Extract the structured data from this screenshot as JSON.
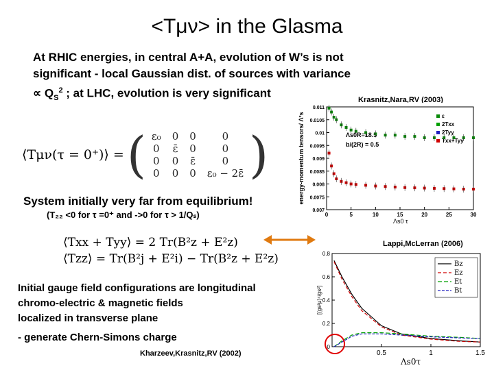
{
  "slide": {
    "title": "<Tμν> in the Glasma",
    "intro_line1": "At RHIC energies, in central A+A, evolution of W’s is not",
    "intro_line2": "significant - local Gaussian dist. of sources with variance",
    "intro_line3_prefix": "∝ Q",
    "intro_line3_sub": "S",
    "intro_line3_sup": "2",
    "intro_line3_suffix": "  ; at LHC, evolution is very significant",
    "cite_top": "Krasnitz,Nara,RV (2003)",
    "system_line": "System initially very far from equilibrium!",
    "tzz_line": "(T₂₂ <0 for τ =0⁺ and ->0 for τ > 1/Qₛ)",
    "cite_mid": "Lappi,McLerran (2006)",
    "initial_line1": "Initial gauge field configurations are longitudinal",
    "initial_line2": "chromo-electric & magnetic fields",
    "initial_line3": "localized in transverse plane",
    "dash_line": "- generate Chern-Simons charge",
    "cite_bottom": "Kharzeev,Krasnitz,RV (2002)"
  },
  "equations": {
    "tmunu_lhs": "⟨Tμν(τ = 0⁺)⟩ =",
    "matrix": [
      [
        "ε₀",
        "0",
        "0",
        "0"
      ],
      [
        "0",
        "ε̄",
        "0",
        "0"
      ],
      [
        "0",
        "0",
        "ε̄",
        "0"
      ],
      [
        "0",
        "0",
        "0",
        "ε₀ − 2ε̄"
      ]
    ],
    "eq1": "⟨Txx + Tyy⟩ = 2 Tr(B²z + E²z)",
    "eq2": "⟨Tzz⟩ = Tr(B²j + E²i) − Tr(B²z + E²z)"
  },
  "chart_data": [
    {
      "type": "scatter",
      "ylabel": "energy-momentum tensors/ Λ³s",
      "xlabel": "Λs0 τ",
      "annotations": [
        "Λs0R=18.5",
        "b/(2R) = 0.5"
      ],
      "legend": [
        "ε",
        "2Txx",
        "2Tyy",
        "Txx+Tyy"
      ],
      "legend_colors": [
        "#0a8a0a",
        "#00a000",
        "#2020c0",
        "#d00000"
      ],
      "xlim": [
        0,
        30
      ],
      "ylim": [
        0.007,
        0.011
      ],
      "xticks": [
        "0",
        "5",
        "10",
        "15",
        "20",
        "25",
        "30"
      ],
      "yticks": [
        "0.007",
        "0.0075",
        "0.008",
        "0.0085",
        "0.009",
        "0.0095",
        "0.01",
        "0.0105",
        "0.011"
      ],
      "series": [
        {
          "name": "ε",
          "color": "#0a8a0a",
          "x": [
            0.5,
            1,
            1.5,
            2,
            3,
            4,
            5,
            6,
            8,
            10,
            12,
            14,
            16,
            18,
            20,
            22,
            24,
            26,
            28,
            30
          ],
          "y": [
            0.01095,
            0.0108,
            0.0106,
            0.0105,
            0.0103,
            0.0102,
            0.0101,
            0.01005,
            0.01,
            0.00995,
            0.0099,
            0.0099,
            0.00985,
            0.00985,
            0.0098,
            0.0098,
            0.0098,
            0.0098,
            0.0098,
            0.0098
          ]
        },
        {
          "name": "Txx+Tyy",
          "color": "#d00000",
          "x": [
            0.5,
            1,
            1.5,
            2,
            3,
            4,
            5,
            6,
            8,
            10,
            12,
            14,
            16,
            18,
            20,
            22,
            24,
            26,
            28,
            30
          ],
          "y": [
            0.0092,
            0.0087,
            0.0084,
            0.0082,
            0.0081,
            0.00805,
            0.008,
            0.00798,
            0.00795,
            0.00792,
            0.0079,
            0.00788,
            0.00786,
            0.00785,
            0.00784,
            0.00783,
            0.00782,
            0.00781,
            0.0078,
            0.0078
          ]
        }
      ]
    },
    {
      "type": "line",
      "xlabel": "Λs0τ",
      "ylabel": "[(gs²μ)⁴/gs²]",
      "legend": [
        "Bz",
        "Ez",
        "Et",
        "Bt"
      ],
      "legend_colors": [
        "#000000",
        "#d00000",
        "#00a000",
        "#2020c0"
      ],
      "xlim": [
        0,
        1.5
      ],
      "ylim": [
        0,
        0.8
      ],
      "xticks": [
        "0.5",
        "1",
        "1.5"
      ],
      "yticks": [
        "0",
        "0.2",
        "0.4",
        "0.6",
        "0.8"
      ],
      "series": [
        {
          "name": "Bz",
          "color": "#000000",
          "x": [
            0.02,
            0.1,
            0.2,
            0.3,
            0.5,
            0.7,
            1.0,
            1.3,
            1.5
          ],
          "y": [
            0.74,
            0.6,
            0.45,
            0.33,
            0.18,
            0.11,
            0.07,
            0.05,
            0.04
          ]
        },
        {
          "name": "Ez",
          "color": "#d00000",
          "x": [
            0.02,
            0.1,
            0.2,
            0.3,
            0.5,
            0.7,
            1.0,
            1.3,
            1.5
          ],
          "y": [
            0.73,
            0.58,
            0.43,
            0.31,
            0.17,
            0.1,
            0.065,
            0.045,
            0.04
          ]
        },
        {
          "name": "Et",
          "color": "#00a000",
          "x": [
            0.02,
            0.1,
            0.2,
            0.3,
            0.5,
            0.7,
            1.0,
            1.3,
            1.5
          ],
          "y": [
            0.0,
            0.05,
            0.1,
            0.12,
            0.12,
            0.11,
            0.09,
            0.08,
            0.07
          ]
        },
        {
          "name": "Bt",
          "color": "#2020c0",
          "x": [
            0.02,
            0.1,
            0.2,
            0.3,
            0.5,
            0.7,
            1.0,
            1.3,
            1.5
          ],
          "y": [
            0.0,
            0.04,
            0.09,
            0.11,
            0.11,
            0.1,
            0.085,
            0.075,
            0.07
          ]
        }
      ]
    }
  ],
  "colors": {
    "arrow": "#e07a10",
    "circle": "#e00000"
  }
}
